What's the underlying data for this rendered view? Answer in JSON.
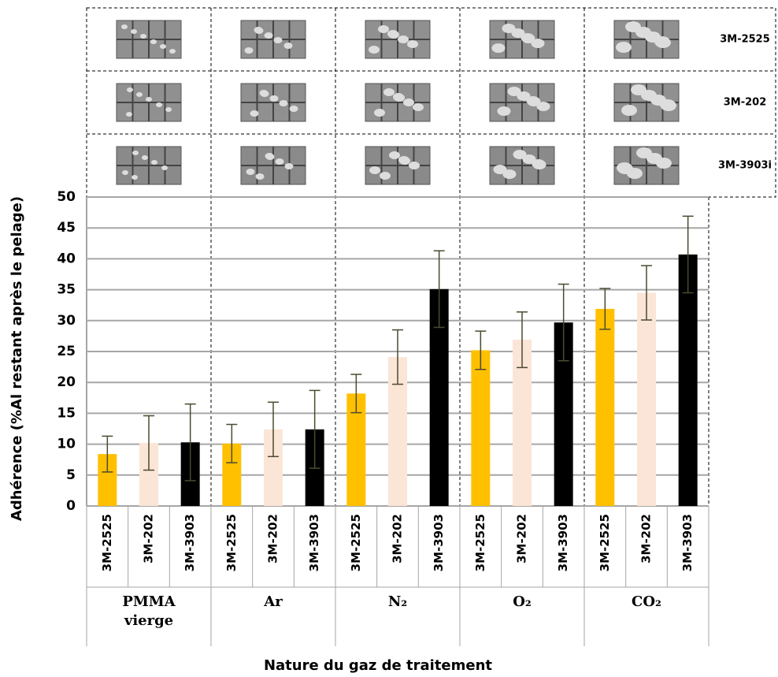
{
  "chart_data": {
    "type": "bar",
    "ylabel": "Adhérence (%Al restant après le pelage)",
    "xlabel": "Nature du gaz de traitement",
    "categories": [
      "PMMA vierge",
      "Ar",
      "N₂",
      "O₂",
      "CO₂"
    ],
    "series": [
      {
        "name": "3M-2525",
        "color": "#ffc000",
        "values": [
          8.4,
          10.1,
          18.2,
          25.2,
          31.9
        ],
        "errors": [
          2.9,
          3.1,
          3.1,
          3.1,
          3.3
        ]
      },
      {
        "name": "3M-202",
        "color": "#fbe5d6",
        "values": [
          10.2,
          12.4,
          24.1,
          26.9,
          34.5
        ],
        "errors": [
          4.4,
          4.4,
          4.4,
          4.5,
          4.4
        ]
      },
      {
        "name": "3M-3903",
        "color": "#000000",
        "values": [
          10.3,
          12.4,
          35.1,
          29.7,
          40.7
        ],
        "errors": [
          6.2,
          6.3,
          6.2,
          6.2,
          6.2
        ]
      }
    ],
    "image_rows": [
      "3M-2525",
      "3M-202",
      "3M-3903i"
    ],
    "ylim": [
      0,
      50
    ],
    "yticks": [
      0,
      5,
      10,
      15,
      20,
      25,
      30,
      35,
      40,
      45,
      50
    ],
    "grid": true
  }
}
